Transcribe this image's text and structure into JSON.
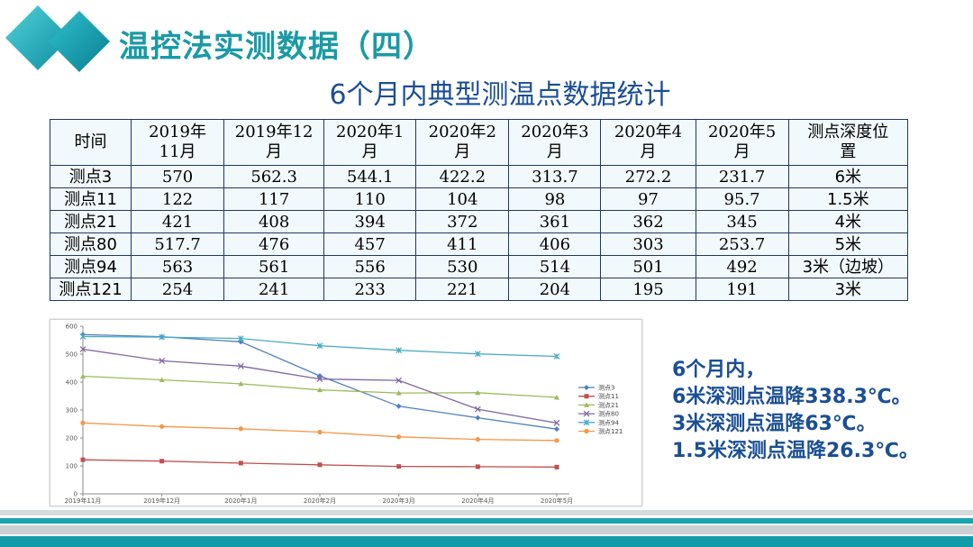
{
  "title": "温控法实测数据（四）",
  "subtitle": "6个月内典型测温点数据统计",
  "colors": {
    "title": "#1a9aa6",
    "subtitle": "#1b4f94",
    "note": "#1b4f94",
    "band_teal": "#139aa8",
    "band_gray": "#c9cfd3"
  },
  "table": {
    "header": [
      "时间",
      "2019年\n11月",
      "2019年12\n月",
      "2020年1\n月",
      "2020年2\n月",
      "2020年3\n月",
      "2020年4\n月",
      "2020年5\n月",
      "测点深度位\n置"
    ],
    "rows": [
      [
        "测点3",
        "570",
        "562.3",
        "544.1",
        "422.2",
        "313.7",
        "272.2",
        "231.7",
        "6米"
      ],
      [
        "测点11",
        "122",
        "117",
        "110",
        "104",
        "98",
        "97",
        "95.7",
        "1.5米"
      ],
      [
        "测点21",
        "421",
        "408",
        "394",
        "372",
        "361",
        "362",
        "345",
        "4米"
      ],
      [
        "测点80",
        "517.7",
        "476",
        "457",
        "411",
        "406",
        "303",
        "253.7",
        "5米"
      ],
      [
        "测点94",
        "563",
        "561",
        "556",
        "530",
        "514",
        "501",
        "492",
        "3米（边坡）"
      ],
      [
        "测点121",
        "254",
        "241",
        "233",
        "221",
        "204",
        "195",
        "191",
        "3米"
      ]
    ]
  },
  "chart_data": {
    "type": "line",
    "categories": [
      "2019年11月",
      "2019年12月",
      "2020年1月",
      "2020年2月",
      "2020年3月",
      "2020年4月",
      "2020年5月"
    ],
    "ylim": [
      0,
      600
    ],
    "yticks": [
      "0",
      "100",
      "200",
      "300",
      "400",
      "500",
      "600"
    ],
    "grid": false,
    "legend": "right",
    "series": [
      {
        "name": "测点3",
        "color": "#4f81bd",
        "marker": "diamond",
        "values": [
          570,
          562.3,
          544.1,
          422.2,
          313.7,
          272.2,
          231.7
        ]
      },
      {
        "name": "测点11",
        "color": "#c0504d",
        "marker": "square",
        "values": [
          122,
          117,
          110,
          104,
          98,
          97,
          95.7
        ]
      },
      {
        "name": "测点21",
        "color": "#9bbb59",
        "marker": "triangle",
        "values": [
          421,
          408,
          394,
          372,
          361,
          362,
          345
        ]
      },
      {
        "name": "测点80",
        "color": "#8064a2",
        "marker": "x",
        "values": [
          517.7,
          476,
          457,
          411,
          406,
          303,
          253.7
        ]
      },
      {
        "name": "测点94",
        "color": "#4bacc6",
        "marker": "star",
        "values": [
          563,
          561,
          556,
          530,
          514,
          501,
          492
        ]
      },
      {
        "name": "测点121",
        "color": "#f79646",
        "marker": "circle",
        "values": [
          254,
          241,
          233,
          221,
          204,
          195,
          191
        ]
      }
    ]
  },
  "note": {
    "lines": [
      "6个月内，",
      "6米深测点温降338.3℃。",
      "3米深测点温降63℃。",
      "1.5米深测点温降26.3℃。"
    ]
  }
}
